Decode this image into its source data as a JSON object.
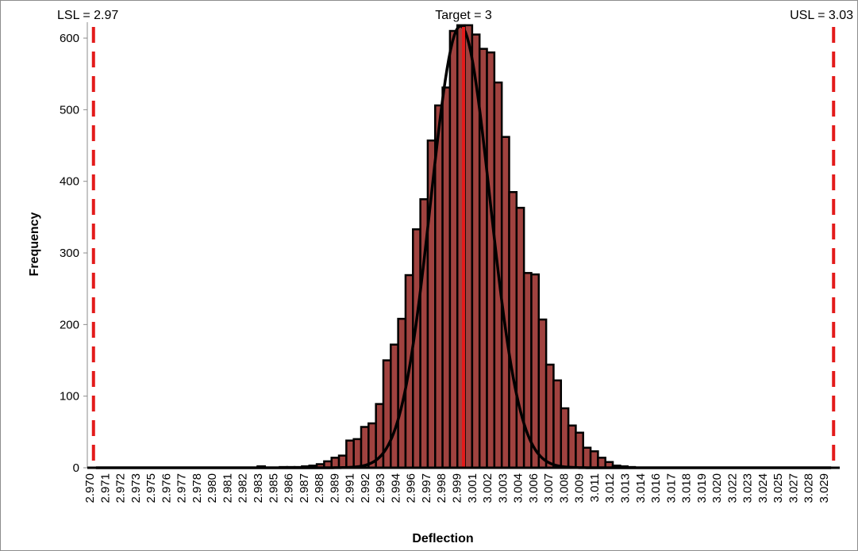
{
  "chart_data": {
    "type": "bar",
    "title": "",
    "xlabel": "Deflection",
    "ylabel": "Frequency",
    "xlim": [
      2.9695,
      3.0305
    ],
    "ylim": [
      0,
      620
    ],
    "y_ticks": [
      0,
      100,
      200,
      300,
      400,
      500,
      600
    ],
    "x_tick_labels": [
      "2.970",
      "2.971",
      "2.972",
      "2.973",
      "2.975",
      "2.976",
      "2.977",
      "2.978",
      "2.980",
      "2.981",
      "2.982",
      "2.983",
      "2.985",
      "2.986",
      "2.987",
      "2.988",
      "2.989",
      "2.991",
      "2.992",
      "2.993",
      "2.994",
      "2.996",
      "2.997",
      "2.998",
      "2.999",
      "3.001",
      "3.002",
      "3.003",
      "3.004",
      "3.006",
      "3.007",
      "3.008",
      "3.009",
      "3.011",
      "3.012",
      "3.013",
      "3.014",
      "3.016",
      "3.017",
      "3.018",
      "3.019",
      "3.020",
      "3.022",
      "3.023",
      "3.024",
      "3.025",
      "3.027",
      "3.028",
      "3.029"
    ],
    "grid": false,
    "bar_color": "#A0423F",
    "curve_color": "#000000",
    "spec_color": "#E31B1B",
    "bin_width": 0.0006,
    "bins": [
      {
        "x": 2.9836,
        "value": 2
      },
      {
        "x": 2.9854,
        "value": 1
      },
      {
        "x": 2.986,
        "value": 1
      },
      {
        "x": 2.9866,
        "value": 1
      },
      {
        "x": 2.9872,
        "value": 2
      },
      {
        "x": 2.9878,
        "value": 3
      },
      {
        "x": 2.9884,
        "value": 5
      },
      {
        "x": 2.989,
        "value": 9
      },
      {
        "x": 2.9896,
        "value": 14
      },
      {
        "x": 2.9902,
        "value": 17
      },
      {
        "x": 2.9908,
        "value": 38
      },
      {
        "x": 2.9914,
        "value": 40
      },
      {
        "x": 2.992,
        "value": 57
      },
      {
        "x": 2.9926,
        "value": 62
      },
      {
        "x": 2.9932,
        "value": 89
      },
      {
        "x": 2.9938,
        "value": 150
      },
      {
        "x": 2.9944,
        "value": 172
      },
      {
        "x": 2.995,
        "value": 208
      },
      {
        "x": 2.9956,
        "value": 269
      },
      {
        "x": 2.9962,
        "value": 333
      },
      {
        "x": 2.9968,
        "value": 375
      },
      {
        "x": 2.9974,
        "value": 457
      },
      {
        "x": 2.998,
        "value": 506
      },
      {
        "x": 2.9986,
        "value": 531
      },
      {
        "x": 2.9992,
        "value": 610
      },
      {
        "x": 2.9998,
        "value": 618
      },
      {
        "x": 3.0004,
        "value": 618
      },
      {
        "x": 3.001,
        "value": 605
      },
      {
        "x": 3.0016,
        "value": 585
      },
      {
        "x": 3.0022,
        "value": 580
      },
      {
        "x": 3.0028,
        "value": 538
      },
      {
        "x": 3.0034,
        "value": 462
      },
      {
        "x": 3.004,
        "value": 385
      },
      {
        "x": 3.0046,
        "value": 363
      },
      {
        "x": 3.0052,
        "value": 272
      },
      {
        "x": 3.0058,
        "value": 270
      },
      {
        "x": 3.0064,
        "value": 207
      },
      {
        "x": 3.007,
        "value": 144
      },
      {
        "x": 3.0076,
        "value": 122
      },
      {
        "x": 3.0082,
        "value": 83
      },
      {
        "x": 3.0088,
        "value": 59
      },
      {
        "x": 3.0094,
        "value": 49
      },
      {
        "x": 3.01,
        "value": 28
      },
      {
        "x": 3.0106,
        "value": 23
      },
      {
        "x": 3.0112,
        "value": 14
      },
      {
        "x": 3.0118,
        "value": 8
      },
      {
        "x": 3.0124,
        "value": 3
      },
      {
        "x": 3.013,
        "value": 2
      },
      {
        "x": 3.0136,
        "value": 1
      }
    ],
    "normal_curve": {
      "mean": 2.99975,
      "sd": 0.0024,
      "peak": 617
    },
    "spec_limits": [
      {
        "label": "LSL = 2.97",
        "value": 2.97,
        "style": "dashed"
      },
      {
        "label": "Target = 3",
        "value": 3.0,
        "style": "solid"
      },
      {
        "label": "USL = 3.03",
        "value": 3.03,
        "style": "dashed"
      }
    ]
  }
}
